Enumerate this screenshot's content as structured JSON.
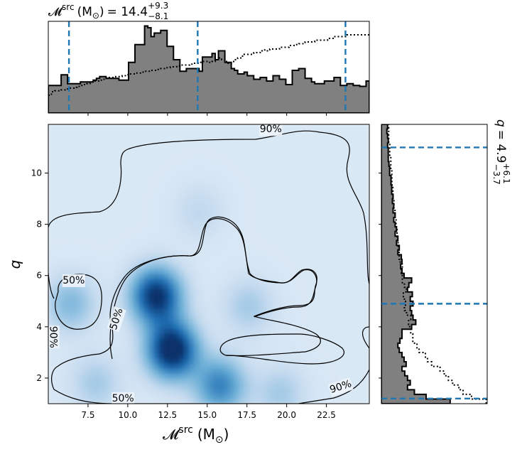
{
  "chart_data": {
    "type": "corner",
    "joint": {
      "type": "heatmap",
      "xlabel": "𝓜",
      "xlabel_sup": "src",
      "xlabel_unit": "(M",
      "xlabel_unit_sub": "⊙",
      "xlabel_unit_close": ")",
      "ylabel": "q",
      "xlim": [
        5.0,
        25.2
      ],
      "ylim": [
        1.0,
        11.9
      ],
      "xticks": [
        "7.5",
        "10.0",
        "12.5",
        "15.0",
        "17.5",
        "20.0",
        "22.5"
      ],
      "xtick_values": [
        7.5,
        10.0,
        12.5,
        15.0,
        17.5,
        20.0,
        22.5
      ],
      "yticks": [
        "2",
        "4",
        "6",
        "8",
        "10"
      ],
      "ytick_values": [
        2,
        4,
        6,
        8,
        10
      ],
      "colormap": "Blues",
      "density_peaks": [
        {
          "x": 12.8,
          "y": 3.1,
          "weight": 1.0
        },
        {
          "x": 11.8,
          "y": 5.2,
          "weight": 0.9
        },
        {
          "x": 15.8,
          "y": 1.7,
          "weight": 0.55
        },
        {
          "x": 6.4,
          "y": 4.9,
          "weight": 0.3
        },
        {
          "x": 17.6,
          "y": 4.8,
          "weight": 0.2
        },
        {
          "x": 8.0,
          "y": 1.8,
          "weight": 0.2
        },
        {
          "x": 19.6,
          "y": 1.4,
          "weight": 0.2
        },
        {
          "x": 14.5,
          "y": 8.5,
          "weight": 0.12
        }
      ],
      "contour_labels": [
        {
          "text": "90%",
          "x": 19.0,
          "y": 11.7,
          "rotate": 0
        },
        {
          "text": "50%",
          "x": 6.6,
          "y": 5.8,
          "rotate": 0
        },
        {
          "text": "50%",
          "x": 9.3,
          "y": 4.3,
          "rotate": -72
        },
        {
          "text": "90%",
          "x": 5.3,
          "y": 3.6,
          "rotate": 90
        },
        {
          "text": "50%",
          "x": 9.7,
          "y": 1.2,
          "rotate": 0
        },
        {
          "text": "90%",
          "x": 23.4,
          "y": 1.65,
          "rotate": -18
        }
      ]
    },
    "top_marginal": {
      "type": "histogram",
      "parameter": "𝓜",
      "parameter_sup": "src",
      "unit": "(M",
      "unit_sub": "⊙",
      "unit_close": ")",
      "median_text": "= 14.4",
      "upper_err": "+9.3",
      "lower_err": "−8.1",
      "quantile_lines": [
        6.3,
        14.4,
        23.7
      ],
      "bins_x": [
        5.0,
        25.2
      ],
      "posterior": [
        0.31,
        0.31,
        0.31,
        0.31,
        0.43,
        0.43,
        0.33,
        0.33,
        0.33,
        0.33,
        0.35,
        0.35,
        0.35,
        0.35,
        0.37,
        0.39,
        0.41,
        0.41,
        0.39,
        0.39,
        0.39,
        0.39,
        0.37,
        0.37,
        0.37,
        0.57,
        0.57,
        0.77,
        0.77,
        0.77,
        0.98,
        0.96,
        0.86,
        0.9,
        0.9,
        0.93,
        0.93,
        0.75,
        0.75,
        0.6,
        0.6,
        0.47,
        0.47,
        0.5,
        0.5,
        0.5,
        0.5,
        0.47,
        0.63,
        0.63,
        0.63,
        0.67,
        0.6,
        0.7,
        0.7,
        0.57,
        0.57,
        0.5,
        0.48,
        0.44,
        0.44,
        0.46,
        0.42,
        0.42,
        0.38,
        0.38,
        0.4,
        0.4,
        0.36,
        0.36,
        0.42,
        0.42,
        0.38,
        0.38,
        0.32,
        0.32,
        0.48,
        0.48,
        0.5,
        0.5,
        0.39,
        0.39,
        0.35,
        0.33,
        0.33,
        0.33,
        0.36,
        0.36,
        0.36,
        0.4,
        0.4,
        0.31,
        0.31,
        0.33,
        0.33,
        0.31,
        0.31,
        0.3,
        0.3,
        0.36
      ],
      "prior": [
        0.2,
        0.24,
        0.25,
        0.25,
        0.26,
        0.26,
        0.28,
        0.28,
        0.29,
        0.3,
        0.31,
        0.32,
        0.33,
        0.35,
        0.36,
        0.36,
        0.37,
        0.38,
        0.39,
        0.4,
        0.4,
        0.41,
        0.41,
        0.42,
        0.43,
        0.44,
        0.44,
        0.45,
        0.45,
        0.46,
        0.47,
        0.47,
        0.48,
        0.48,
        0.49,
        0.5,
        0.5,
        0.51,
        0.52,
        0.52,
        0.53,
        0.54,
        0.54,
        0.54,
        0.55,
        0.56,
        0.56,
        0.57,
        0.58,
        0.58,
        0.57,
        0.58,
        0.6,
        0.62,
        0.6,
        0.58,
        0.56,
        0.58,
        0.6,
        0.62,
        0.64,
        0.66,
        0.66,
        0.66,
        0.68,
        0.68,
        0.7,
        0.71,
        0.7,
        0.72,
        0.72,
        0.72,
        0.74,
        0.74,
        0.74,
        0.76,
        0.76,
        0.77,
        0.78,
        0.78,
        0.8,
        0.8,
        0.8,
        0.82,
        0.82,
        0.82,
        0.82,
        0.84,
        0.84,
        0.86,
        0.86,
        0.86,
        0.86,
        0.88,
        0.88,
        0.88,
        0.88,
        0.88,
        0.88,
        0.88
      ]
    },
    "right_marginal": {
      "type": "histogram",
      "orientation": "horizontal",
      "parameter": "q",
      "median_text": "= 4.9",
      "upper_err": "+6.1",
      "lower_err": "−3.7",
      "quantile_lines": [
        1.2,
        4.9,
        11.0
      ],
      "bins_y": [
        1.0,
        11.9
      ],
      "posterior": [
        1.0,
        0.65,
        0.48,
        0.38,
        0.42,
        0.38,
        0.34,
        0.3,
        0.36,
        0.33,
        0.3,
        0.26,
        0.24,
        0.27,
        0.3,
        0.3,
        0.44,
        0.5,
        0.46,
        0.44,
        0.42,
        0.46,
        0.42,
        0.45,
        0.38,
        0.4,
        0.44,
        0.33,
        0.3,
        0.28,
        0.3,
        0.29,
        0.24,
        0.26,
        0.22,
        0.24,
        0.2,
        0.22,
        0.2,
        0.18,
        0.2,
        0.17,
        0.18,
        0.16,
        0.17,
        0.15,
        0.15,
        0.14,
        0.14,
        0.12,
        0.12,
        0.11,
        0.1,
        0.1,
        0.1,
        0.09,
        0.1,
        0.09,
        0.08,
        0.09
      ],
      "prior": [
        1.0,
        0.86,
        0.78,
        0.74,
        0.68,
        0.64,
        0.6,
        0.56,
        0.48,
        0.44,
        0.42,
        0.36,
        0.34,
        0.3,
        0.3,
        0.28,
        0.27,
        0.26,
        0.28,
        0.24,
        0.22,
        0.23,
        0.22,
        0.21,
        0.24,
        0.22,
        0.2,
        0.2,
        0.19,
        0.2,
        0.18,
        0.17,
        0.17,
        0.16,
        0.16,
        0.15,
        0.15,
        0.15,
        0.14,
        0.14,
        0.13,
        0.13,
        0.12,
        0.12,
        0.11,
        0.11,
        0.11,
        0.1,
        0.1,
        0.1,
        0.09,
        0.09,
        0.09,
        0.08,
        0.08,
        0.08,
        0.07,
        0.07,
        0.07,
        0.07
      ]
    }
  },
  "colors": {
    "posterior_fill": "#808080",
    "quantile_line": "#1f77b4",
    "contour": "#000000"
  }
}
